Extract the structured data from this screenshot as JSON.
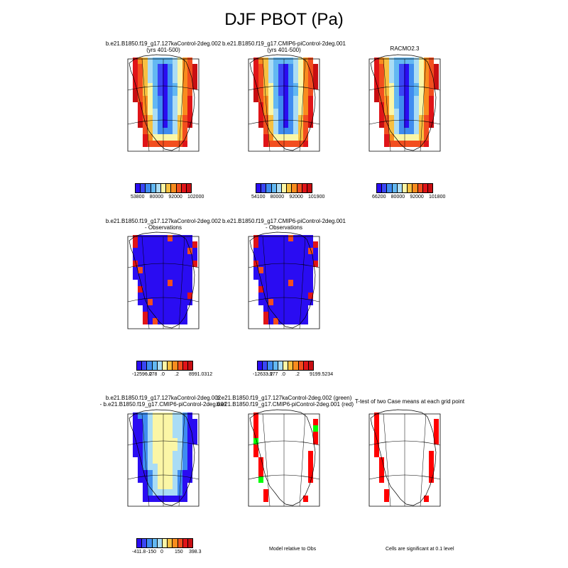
{
  "title": "DJF PBOT (Pa)",
  "colors": {
    "palette": [
      "#2a0cf2",
      "#3a46f5",
      "#3f8cf0",
      "#63b8f2",
      "#a9dcf5",
      "#fbf6a6",
      "#f8c040",
      "#f88c1e",
      "#f24e1e",
      "#e01418",
      "#c80e12"
    ],
    "zero": "#a9dcf5",
    "diff_pos": "#fbf6a6",
    "sig_red": "#ff0000",
    "sig_green": "#00ff00"
  },
  "panels": [
    {
      "id": "p1",
      "title_lines": [
        "b.e21.B1850.f19_g17.127kaControl-2deg.002",
        "(yrs 401-500)"
      ],
      "colorbar": [
        "53800",
        "80000",
        "92000",
        "102000"
      ]
    },
    {
      "id": "p2",
      "title_lines": [
        "b.e21.B1850.f19_g17.CMIP6-piControl-2deg.001",
        "(yrs 401-500)"
      ],
      "colorbar": [
        "54100",
        "80000",
        "92000",
        "101900"
      ]
    },
    {
      "id": "p3",
      "title_lines": [
        "RACMO2.3"
      ],
      "colorbar": [
        "66200",
        "80000",
        "92000",
        "101800"
      ]
    },
    {
      "id": "p4",
      "title_lines": [
        "b.e21.B1850.f19_g17.127kaControl-2deg.002",
        "- Observations"
      ],
      "colorbar": [
        "-12596.078",
        "-.2",
        ".0",
        ".2",
        "8991.0312"
      ]
    },
    {
      "id": "p5",
      "title_lines": [
        "b.e21.B1850.f19_g17.CMIP6-piControl-2deg.001",
        "- Observations"
      ],
      "colorbar": [
        "-12633.977",
        "-.2",
        ".0",
        ".2",
        "9199.5234"
      ]
    },
    {
      "id": "p6",
      "title_lines": [
        "b.e21.B1850.f19_g17.127kaControl-2deg.002",
        "- b.e21.B1850.f19_g17.CMIP6-piControl-2deg.001"
      ],
      "colorbar": [
        "-411.8",
        "-150",
        "0",
        "150",
        "398.3"
      ]
    },
    {
      "id": "p7",
      "title_lines": [
        "b.e21.B1850.f19_g17.127kaControl-2deg.002 (green)",
        "b.e21.B1850.f19_g17.CMIP6-piControl-2deg.001 (red)"
      ],
      "note": "Model relative to Obs"
    },
    {
      "id": "p8",
      "title_lines": [
        "T-test of two Case means at each grid point"
      ],
      "note": "Cells are significant at 0.1 level"
    }
  ]
}
